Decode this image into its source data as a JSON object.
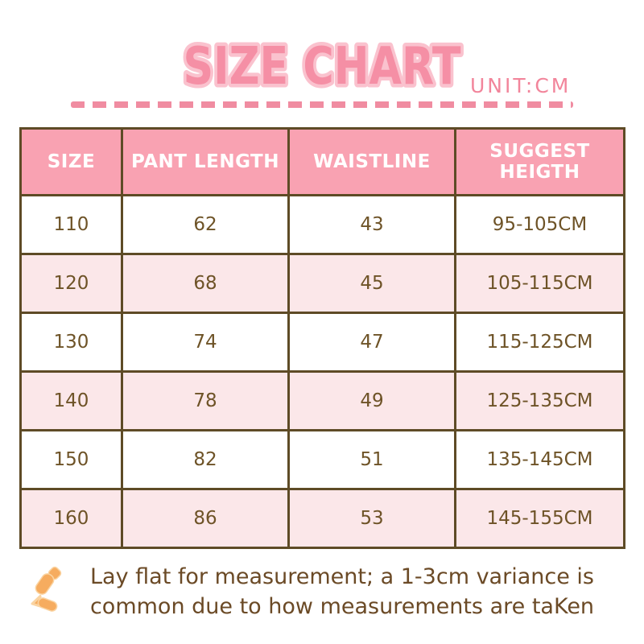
{
  "header": {
    "title": "SIZE CHART",
    "unit_label": "UNIT:CM"
  },
  "table": {
    "columns": [
      "SIZE",
      "PANT LENGTH",
      "WAISTLINE",
      "SUGGEST HEIGTH"
    ],
    "rows": [
      [
        "110",
        "62",
        "43",
        "95-105CM"
      ],
      [
        "120",
        "68",
        "45",
        "105-115CM"
      ],
      [
        "130",
        "74",
        "47",
        "115-125CM"
      ],
      [
        "140",
        "78",
        "49",
        "125-135CM"
      ],
      [
        "150",
        "82",
        "51",
        "135-145CM"
      ],
      [
        "160",
        "86",
        "53",
        "145-155CM"
      ]
    ]
  },
  "footer": {
    "icon": "sparkle-icon",
    "note_line1": "Lay flat for measurement; a 1-3cm variance is",
    "note_line2": "common due to how measurements are taKen"
  },
  "colors": {
    "title_pink": "#F58FA5",
    "title_outline_pink": "#FAC2CE",
    "unit_pink": "#F2859B",
    "dash_pink": "#F08CA1",
    "header_row_pink": "#F9A2B2",
    "alt_row_pink": "#FBE7E9",
    "border_brown": "#5E4B26",
    "cell_text_brown": "#6E5327",
    "note_text_brown": "#6B4A26",
    "icon_orange": "#F6AC5F"
  },
  "chart_data": {
    "type": "table",
    "title": "SIZE CHART",
    "unit": "CM",
    "columns": [
      "SIZE",
      "PANT LENGTH",
      "WAISTLINE",
      "SUGGEST HEIGTH"
    ],
    "rows": [
      [
        110,
        62,
        43,
        "95-105CM"
      ],
      [
        120,
        68,
        45,
        "105-115CM"
      ],
      [
        130,
        74,
        47,
        "115-125CM"
      ],
      [
        140,
        78,
        49,
        "125-135CM"
      ],
      [
        150,
        82,
        51,
        "135-145CM"
      ],
      [
        160,
        86,
        53,
        "145-155CM"
      ]
    ],
    "note": "Lay flat for measurement; a 1-3cm variance is common due to how measurements are taKen"
  }
}
